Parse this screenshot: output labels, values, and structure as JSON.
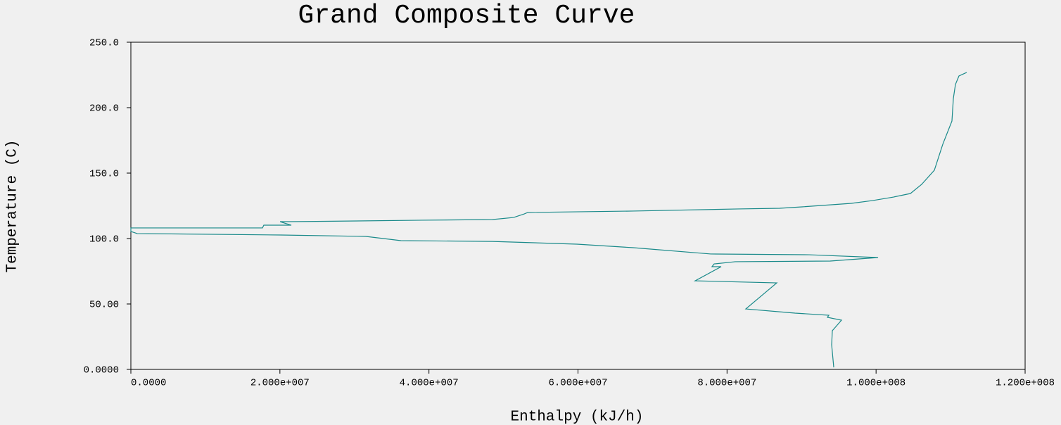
{
  "chart_data": {
    "type": "line",
    "title": "Grand Composite Curve",
    "x_label": "Enthalpy (kJ/h)",
    "y_label": "Temperature (C)",
    "color": "#1a8a8a",
    "x": [
      112160000,
      111120000,
      110650000,
      110370000,
      110180000,
      108950000,
      107820000,
      106120000,
      104610000,
      102340000,
      99510000,
      96680000,
      90070000,
      87050000,
      81570000,
      67410000,
      53250000,
      52780000,
      51360000,
      48530000,
      39090000,
      21530000,
      20020000,
      21530000,
      17840000,
      17660000,
      0,
      0,
      850000,
      20200000,
      31530000,
      36250000,
      48530000,
      59860000,
      67410000,
      77800000,
      91010000,
      100270000,
      93850000,
      81100000,
      78270000,
      77980000,
      79210000,
      75720000,
      86670000,
      82520000,
      89130000,
      93660000,
      93470000,
      95360000,
      94130000,
      94040000,
      94320000
    ],
    "values": [
      226.9,
      224.2,
      217.7,
      207.0,
      189.8,
      172.0,
      152.2,
      141.4,
      134.4,
      131.7,
      129.0,
      126.9,
      124.2,
      123.1,
      122.6,
      121.0,
      119.9,
      118.8,
      116.1,
      114.5,
      114.0,
      112.9,
      112.9,
      110.2,
      110.2,
      108.1,
      108.1,
      105.4,
      103.8,
      102.7,
      101.6,
      98.4,
      97.8,
      95.7,
      93.0,
      88.2,
      87.6,
      85.5,
      82.8,
      82.3,
      80.6,
      78.5,
      78.5,
      67.7,
      66.1,
      46.2,
      43.0,
      41.4,
      39.8,
      37.6,
      29.6,
      18.8,
      1.6
    ],
    "xlim": [
      0,
      120000000
    ],
    "xticks": [
      {
        "value": 0,
        "label": "0.0000"
      },
      {
        "value": 20000000,
        "label": "2.000e+007"
      },
      {
        "value": 40000000,
        "label": "4.000e+007"
      },
      {
        "value": 60000000,
        "label": "6.000e+007"
      },
      {
        "value": 80000000,
        "label": "8.000e+007"
      },
      {
        "value": 100000000,
        "label": "1.000e+008"
      },
      {
        "value": 120000000,
        "label": "1.200e+008"
      }
    ],
    "ylim": [
      0,
      250
    ],
    "yticks": [
      {
        "value": 0,
        "label": "0.0000"
      },
      {
        "value": 50,
        "label": "50.00"
      },
      {
        "value": 100,
        "label": "100.0"
      },
      {
        "value": 150,
        "label": "150.0"
      },
      {
        "value": 200,
        "label": "200.0"
      },
      {
        "value": 250,
        "label": "250.0"
      }
    ],
    "grid": false
  }
}
